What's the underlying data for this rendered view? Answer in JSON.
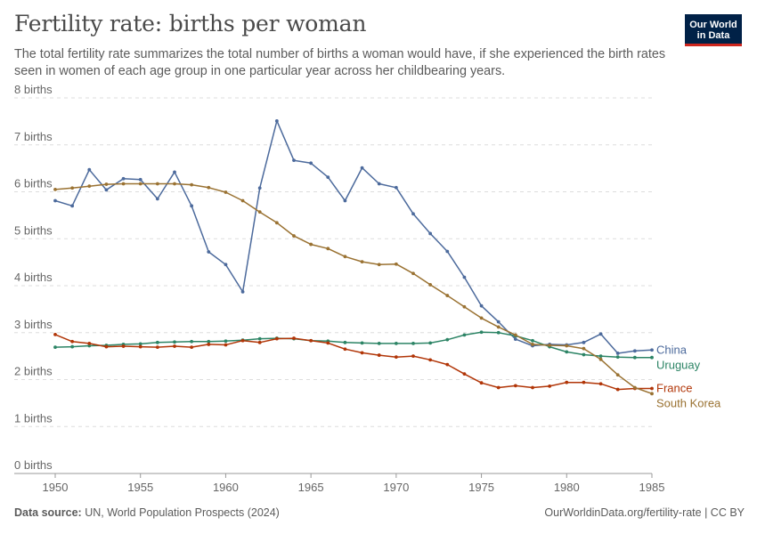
{
  "header": {
    "title": "Fertility rate: births per woman",
    "subtitle": "The total fertility rate summarizes the total number of births a woman would have, if she experienced the birth rates seen in women of each age group in one particular year across her childbearing years."
  },
  "logo": {
    "line1": "Our World",
    "line2": "in Data"
  },
  "footer": {
    "source_label": "Data source:",
    "source_text": "UN, World Population Prospects (2024)",
    "credit": "OurWorldinData.org/fertility-rate | CC BY"
  },
  "chart_data": {
    "type": "line",
    "title": "Fertility rate: births per woman",
    "xlabel": "",
    "ylabel": "",
    "xlim": [
      1950,
      1985
    ],
    "ylim": [
      0,
      8
    ],
    "x_ticks": [
      1950,
      1955,
      1960,
      1965,
      1970,
      1975,
      1980,
      1985
    ],
    "y_ticks": [
      {
        "value": 0,
        "label": "0 births"
      },
      {
        "value": 1,
        "label": "1 births"
      },
      {
        "value": 2,
        "label": "2 births"
      },
      {
        "value": 3,
        "label": "3 births"
      },
      {
        "value": 4,
        "label": "4 births"
      },
      {
        "value": 5,
        "label": "5 births"
      },
      {
        "value": 6,
        "label": "6 births"
      },
      {
        "value": 7,
        "label": "7 births"
      },
      {
        "value": 8,
        "label": "8 births"
      }
    ],
    "grid": true,
    "x": [
      1950,
      1951,
      1952,
      1953,
      1954,
      1955,
      1956,
      1957,
      1958,
      1959,
      1960,
      1961,
      1962,
      1963,
      1964,
      1965,
      1966,
      1967,
      1968,
      1969,
      1970,
      1971,
      1972,
      1973,
      1974,
      1975,
      1976,
      1977,
      1978,
      1979,
      1980,
      1981,
      1982,
      1983,
      1984,
      1985
    ],
    "series": [
      {
        "name": "China",
        "color": "#4c6a9c",
        "values": [
          5.81,
          5.7,
          6.47,
          6.04,
          6.28,
          6.26,
          5.85,
          6.42,
          5.7,
          4.72,
          4.45,
          3.87,
          6.08,
          7.51,
          6.67,
          6.61,
          6.31,
          5.81,
          6.51,
          6.17,
          6.09,
          5.53,
          5.11,
          4.73,
          4.18,
          3.57,
          3.23,
          2.86,
          2.72,
          2.75,
          2.74,
          2.79,
          2.97,
          2.56,
          2.61,
          2.63
        ]
      },
      {
        "name": "Uruguay",
        "color": "#2c8465",
        "values": [
          2.69,
          2.7,
          2.72,
          2.73,
          2.75,
          2.76,
          2.79,
          2.8,
          2.81,
          2.81,
          2.82,
          2.84,
          2.87,
          2.88,
          2.87,
          2.83,
          2.82,
          2.79,
          2.78,
          2.77,
          2.77,
          2.77,
          2.78,
          2.85,
          2.95,
          3.01,
          3.0,
          2.93,
          2.83,
          2.7,
          2.59,
          2.53,
          2.5,
          2.48,
          2.47,
          2.47
        ]
      },
      {
        "name": "France",
        "color": "#b13507",
        "values": [
          2.96,
          2.81,
          2.77,
          2.7,
          2.71,
          2.7,
          2.69,
          2.71,
          2.69,
          2.75,
          2.74,
          2.83,
          2.79,
          2.87,
          2.88,
          2.83,
          2.78,
          2.65,
          2.57,
          2.52,
          2.48,
          2.5,
          2.42,
          2.32,
          2.12,
          1.93,
          1.83,
          1.87,
          1.83,
          1.86,
          1.94,
          1.94,
          1.91,
          1.79,
          1.81,
          1.81
        ]
      },
      {
        "name": "South Korea",
        "color": "#9a7232",
        "values": [
          6.05,
          6.08,
          6.12,
          6.16,
          6.17,
          6.17,
          6.17,
          6.17,
          6.15,
          6.09,
          5.99,
          5.81,
          5.57,
          5.34,
          5.06,
          4.88,
          4.79,
          4.62,
          4.51,
          4.45,
          4.46,
          4.26,
          4.02,
          3.79,
          3.55,
          3.31,
          3.12,
          2.95,
          2.75,
          2.73,
          2.72,
          2.66,
          2.43,
          2.1,
          1.83,
          1.7
        ]
      }
    ],
    "end_labels": [
      {
        "name": "China",
        "text": "China",
        "color": "#4c6a9c"
      },
      {
        "name": "Uruguay",
        "text": "Uruguay",
        "color": "#2c8465"
      },
      {
        "name": "France",
        "text": "France",
        "color": "#b13507"
      },
      {
        "name": "South Korea",
        "text": "South Korea",
        "color": "#9a7232"
      }
    ]
  }
}
